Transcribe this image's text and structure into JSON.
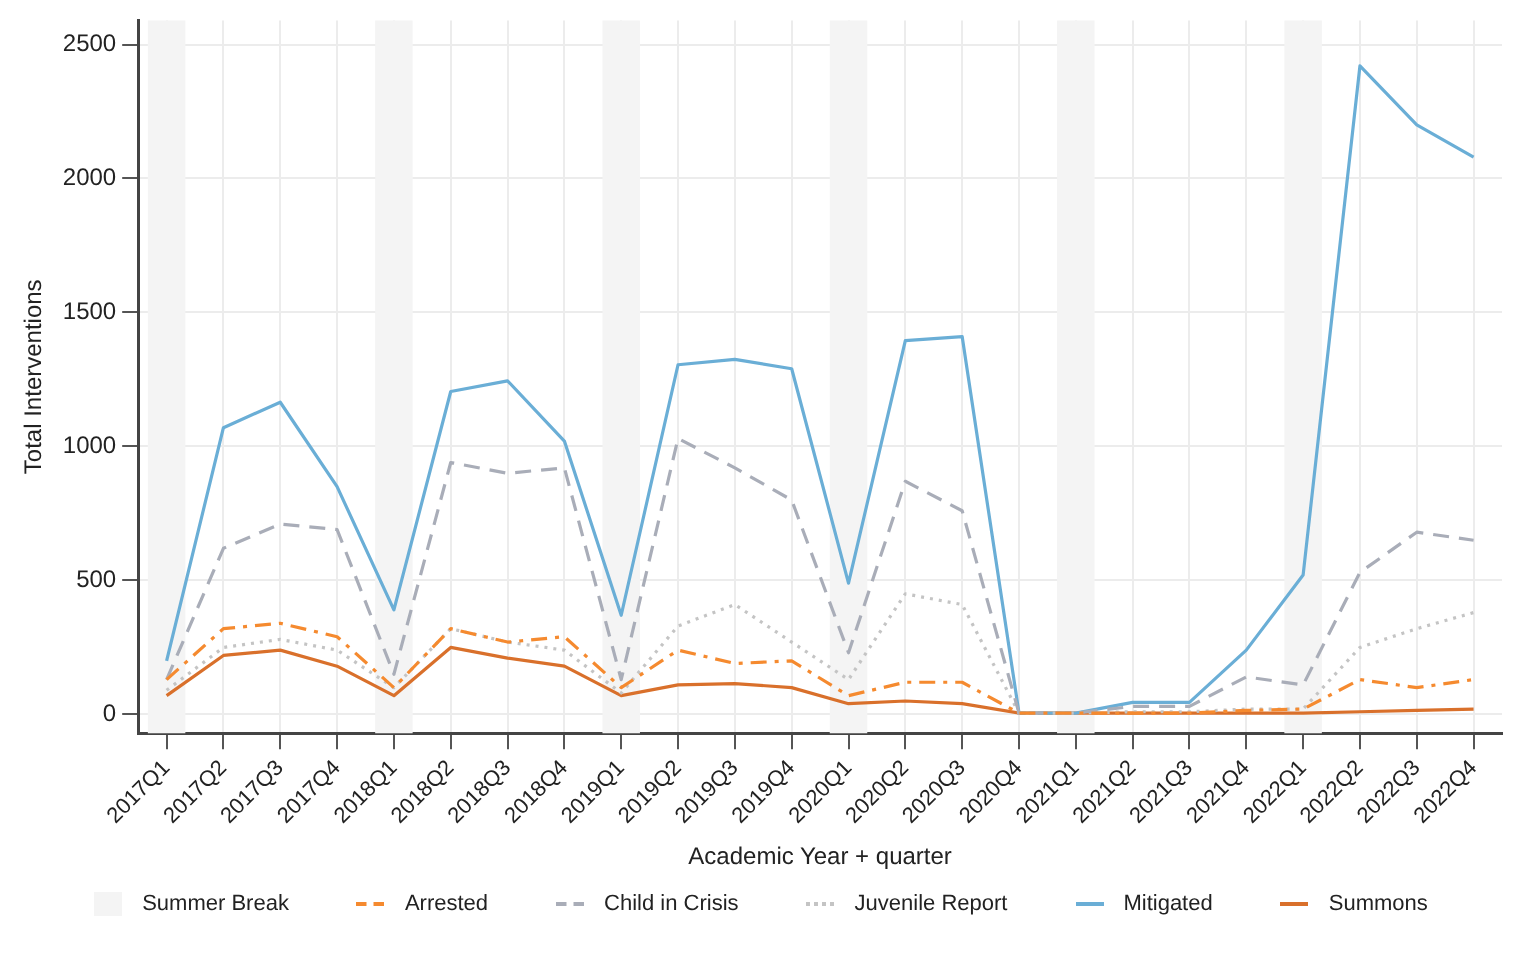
{
  "chart_data": {
    "type": "line",
    "xlabel": "Academic Year + quarter",
    "ylabel": "Total Interventions",
    "categories": [
      "2017Q1",
      "2017Q2",
      "2017Q3",
      "2017Q4",
      "2018Q1",
      "2018Q2",
      "2018Q3",
      "2018Q4",
      "2019Q1",
      "2019Q2",
      "2019Q3",
      "2019Q4",
      "2020Q1",
      "2020Q2",
      "2020Q3",
      "2020Q4",
      "2021Q1",
      "2021Q2",
      "2021Q3",
      "2021Q4",
      "2022Q1",
      "2022Q2",
      "2022Q3",
      "2022Q4"
    ],
    "series": [
      {
        "name": "Arrested",
        "color": "#f58a2f",
        "line_style": "dashdot",
        "values": [
          130,
          320,
          340,
          290,
          100,
          320,
          270,
          290,
          100,
          240,
          190,
          200,
          70,
          120,
          120,
          5,
          5,
          5,
          5,
          15,
          20,
          130,
          100,
          130
        ]
      },
      {
        "name": "Child in Crisis",
        "color": "#a9adb8",
        "line_style": "dashed",
        "values": [
          130,
          620,
          710,
          690,
          150,
          940,
          900,
          920,
          130,
          1030,
          920,
          800,
          230,
          870,
          760,
          5,
          5,
          30,
          30,
          140,
          110,
          530,
          680,
          650
        ]
      },
      {
        "name": "Juvenile Report",
        "color": "#c4c4c4",
        "line_style": "dotted",
        "values": [
          90,
          250,
          280,
          240,
          100,
          320,
          270,
          240,
          80,
          330,
          410,
          270,
          130,
          450,
          410,
          5,
          5,
          10,
          10,
          20,
          20,
          250,
          320,
          380
        ]
      },
      {
        "name": "Mitigated",
        "color": "#6aaed6",
        "line_style": "solid",
        "values": [
          200,
          1070,
          1165,
          850,
          390,
          1205,
          1245,
          1020,
          370,
          1305,
          1325,
          1290,
          490,
          1395,
          1410,
          5,
          5,
          45,
          45,
          240,
          520,
          2420,
          2200,
          2080
        ]
      },
      {
        "name": "Summons",
        "color": "#d9702b",
        "line_style": "solid",
        "values": [
          70,
          220,
          240,
          180,
          70,
          250,
          210,
          180,
          70,
          110,
          115,
          100,
          40,
          50,
          40,
          5,
          5,
          5,
          5,
          5,
          5,
          10,
          15,
          20
        ]
      }
    ],
    "bands": [
      {
        "axis": "x",
        "from": "2017Q1",
        "to": "2017Q1",
        "label": "Summer Break",
        "color": "#f4f4f4"
      },
      {
        "axis": "x",
        "from": "2018Q1",
        "to": "2018Q1",
        "color": "#f4f4f4"
      },
      {
        "axis": "x",
        "from": "2019Q1",
        "to": "2019Q1",
        "color": "#f4f4f4"
      },
      {
        "axis": "x",
        "from": "2020Q1",
        "to": "2020Q1",
        "color": "#f4f4f4"
      },
      {
        "axis": "x",
        "from": "2021Q1",
        "to": "2021Q1",
        "color": "#f4f4f4"
      },
      {
        "axis": "x",
        "from": "2022Q1",
        "to": "2022Q1",
        "color": "#f4f4f4"
      }
    ],
    "ylim": [
      -70,
      2590
    ],
    "yticks": [
      0,
      500,
      1000,
      1500,
      2000,
      2500
    ],
    "grid": true,
    "legend": "bottom",
    "marker": "none"
  }
}
